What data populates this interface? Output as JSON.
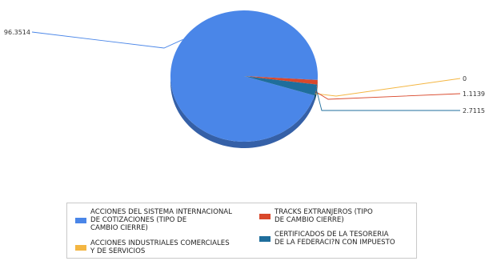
{
  "chart_data": {
    "type": "pie",
    "style": "3d",
    "slices": [
      {
        "label": "ACCIONES DEL SISTEMA INTERNACIONAL DE COTIZACIONES (TIPO DE CAMBIO CIERRE)",
        "value": 96.3514,
        "value_label": "96.3514",
        "color": "#4A86E8"
      },
      {
        "label": "ACCIONES INDUSTRIALES COMERCIALES Y DE SERVICIOS",
        "value": 0,
        "value_label": "0",
        "color": "#F4B642"
      },
      {
        "label": "TRACKS EXTRANJEROS (TIPO DE CAMBIO CIERRE)",
        "value": 1.1139,
        "value_label": "1.1139",
        "color": "#D9482B"
      },
      {
        "label": "CERTIFICADOS DE LA TESORERIA DE LA FEDERACI?N CON IMPUESTO",
        "value": 2.7115,
        "value_label": "2.7115",
        "color": "#1F6E9C"
      }
    ],
    "legend_position": "bottom"
  },
  "legend": {
    "items": [
      {
        "line1": "ACCIONES DEL SISTEMA INTERNACIONAL",
        "line2": "DE COTIZACIONES (TIPO DE",
        "line3": "CAMBIO CIERRE)",
        "color": "#4A86E8"
      },
      {
        "line1": "TRACKS EXTRANJEROS (TIPO",
        "line2": "DE CAMBIO CIERRE)",
        "color": "#D9482B"
      },
      {
        "line1": "ACCIONES INDUSTRIALES COMERCIALES",
        "line2": "Y DE SERVICIOS",
        "color": "#F4B642"
      },
      {
        "line1": "CERTIFICADOS DE LA TESORERIA",
        "line2": "DE LA FEDERACI?N CON IMPUESTO",
        "color": "#1F6E9C"
      }
    ]
  }
}
